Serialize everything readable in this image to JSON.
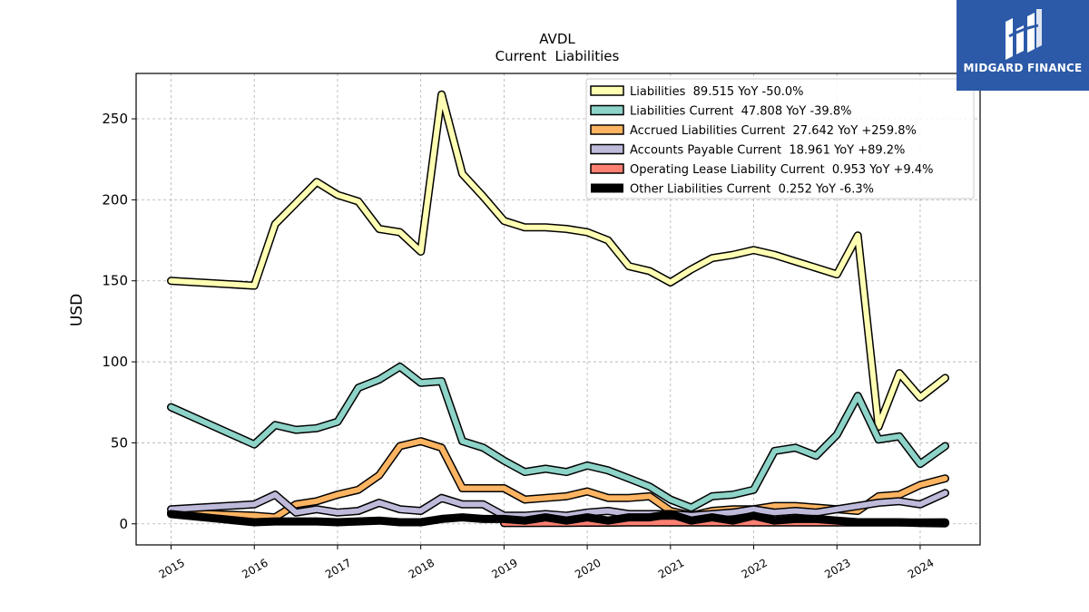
{
  "chart_data": {
    "type": "line",
    "title": "AVDL",
    "subtitle": "Current  Liabilities",
    "ylabel": "USD",
    "xlabel": "",
    "ylim": [
      -13,
      278
    ],
    "xlim": [
      2014.58,
      2024.72
    ],
    "yticks": [
      0,
      50,
      100,
      150,
      200,
      250
    ],
    "xticks": [
      "2015",
      "2016",
      "2017",
      "2018",
      "2019",
      "2020",
      "2021",
      "2022",
      "2023",
      "2024"
    ],
    "grid": true,
    "legend_position": "top-right",
    "series": [
      {
        "name": "Liabilities",
        "legend": "Liabilities  89.515 YoY -50.0%",
        "color": "#ffffb3",
        "width": 6,
        "x": [
          2015.0,
          2016.0,
          2016.25,
          2016.5,
          2016.75,
          2017.0,
          2017.25,
          2017.5,
          2017.75,
          2018.0,
          2018.25,
          2018.5,
          2018.75,
          2019.0,
          2019.25,
          2019.5,
          2019.75,
          2020.0,
          2020.25,
          2020.5,
          2020.75,
          2021.0,
          2021.25,
          2021.5,
          2021.75,
          2022.0,
          2022.25,
          2022.5,
          2022.75,
          2023.0,
          2023.25,
          2023.5,
          2023.75,
          2024.0,
          2024.3
        ],
        "y": [
          150,
          147,
          185,
          198,
          211,
          203,
          199,
          182,
          180,
          168,
          265,
          216,
          202,
          187,
          183,
          183,
          182,
          180,
          175,
          159,
          156,
          149,
          157,
          164,
          166,
          169,
          166,
          162,
          158,
          154,
          178,
          60,
          93,
          78,
          90
        ]
      },
      {
        "name": "Liabilities Current",
        "legend": "Liabilities Current  47.808 YoY -39.8%",
        "color": "#8dd3c7",
        "width": 6,
        "x": [
          2015.0,
          2016.0,
          2016.25,
          2016.5,
          2016.75,
          2017.0,
          2017.25,
          2017.5,
          2017.75,
          2018.0,
          2018.25,
          2018.5,
          2018.75,
          2019.0,
          2019.25,
          2019.5,
          2019.75,
          2020.0,
          2020.25,
          2020.5,
          2020.75,
          2021.0,
          2021.25,
          2021.5,
          2021.75,
          2022.0,
          2022.25,
          2022.5,
          2022.75,
          2023.0,
          2023.25,
          2023.5,
          2023.75,
          2024.0,
          2024.3
        ],
        "y": [
          72,
          49,
          61,
          58,
          59,
          63,
          84,
          89,
          97,
          87,
          88,
          51,
          47,
          39,
          32,
          34,
          32,
          36,
          33,
          28,
          23,
          15,
          10,
          17,
          18,
          21,
          45,
          47,
          42,
          55,
          79,
          52,
          54,
          37,
          48
        ]
      },
      {
        "name": "Accrued Liabilities Current",
        "legend": "Accrued Liabilities Current  27.642 YoY +259.8%",
        "color": "#fdb462",
        "width": 6,
        "x": [
          2015.0,
          2016.0,
          2016.25,
          2016.5,
          2016.75,
          2017.0,
          2017.25,
          2017.5,
          2017.75,
          2018.0,
          2018.25,
          2018.5,
          2018.75,
          2019.0,
          2019.25,
          2019.5,
          2019.75,
          2020.0,
          2020.25,
          2020.5,
          2020.75,
          2021.0,
          2021.25,
          2021.5,
          2021.75,
          2022.0,
          2022.25,
          2022.5,
          2022.75,
          2023.0,
          2023.25,
          2023.5,
          2023.75,
          2024.0,
          2024.3
        ],
        "y": [
          7,
          5,
          4,
          12,
          14,
          18,
          21,
          30,
          48,
          51,
          47,
          22,
          22,
          22,
          15,
          16,
          17,
          20,
          16,
          16,
          17,
          8,
          5,
          8,
          9,
          9,
          11,
          11,
          10,
          9,
          8,
          17,
          18,
          24,
          28
        ]
      },
      {
        "name": "Accounts Payable Current",
        "legend": "Accounts Payable Current  18.961 YoY +89.2%",
        "color": "#bebada",
        "width": 6,
        "x": [
          2015.0,
          2016.0,
          2016.25,
          2016.5,
          2016.75,
          2017.0,
          2017.25,
          2017.5,
          2017.75,
          2018.0,
          2018.25,
          2018.5,
          2018.75,
          2019.0,
          2019.25,
          2019.5,
          2019.75,
          2020.0,
          2020.25,
          2020.5,
          2020.75,
          2021.0,
          2021.25,
          2021.5,
          2021.75,
          2022.0,
          2022.25,
          2022.5,
          2022.75,
          2023.0,
          2023.25,
          2023.5,
          2023.75,
          2024.0,
          2024.3
        ],
        "y": [
          9,
          12,
          18,
          7,
          9,
          7,
          8,
          13,
          9,
          8,
          16,
          12,
          12,
          5,
          5,
          6,
          5,
          7,
          8,
          6,
          6,
          6,
          5,
          6,
          7,
          9,
          7,
          8,
          7,
          9,
          11,
          13,
          14,
          12,
          19
        ]
      },
      {
        "name": "Operating Lease Liability Current",
        "legend": "Operating Lease Liability Current  0.953 YoY +9.4%",
        "color": "#fb8072",
        "width": 6,
        "x": [
          2019.0,
          2019.25,
          2019.5,
          2019.75,
          2020.0,
          2020.25,
          2020.5,
          2020.75,
          2021.0,
          2021.25,
          2021.5,
          2021.75,
          2022.0,
          2022.25,
          2022.5,
          2022.75,
          2023.0,
          2023.25,
          2023.5,
          2023.75,
          2024.0,
          2024.3
        ],
        "y": [
          0.5,
          0.5,
          0.6,
          0.6,
          0.7,
          0.7,
          0.8,
          0.8,
          0.9,
          0.9,
          0.9,
          0.9,
          0.9,
          0.9,
          0.9,
          0.9,
          0.9,
          0.9,
          0.9,
          0.9,
          0.9,
          0.95
        ]
      },
      {
        "name": "Other Liabilities Current",
        "legend": "Other Liabilities Current  0.252 YoY -6.3%",
        "color": "#000000",
        "width": 9,
        "x": [
          2015.0,
          2016.0,
          2016.25,
          2016.5,
          2016.75,
          2017.0,
          2017.25,
          2017.5,
          2017.75,
          2018.0,
          2018.25,
          2018.5,
          2018.75,
          2019.0,
          2019.25,
          2019.5,
          2019.75,
          2020.0,
          2020.25,
          2020.5,
          2020.75,
          2021.0,
          2021.25,
          2021.5,
          2021.75,
          2022.0,
          2022.25,
          2022.5,
          2022.75,
          2023.0,
          2023.25,
          2023.5,
          2023.75,
          2024.0,
          2024.3
        ],
        "y": [
          6,
          1,
          1.5,
          1.5,
          1.5,
          1,
          1.5,
          2,
          1,
          1,
          3,
          4,
          3,
          3,
          2,
          4,
          2,
          4,
          2,
          4,
          4,
          6,
          2,
          4,
          2,
          5,
          2,
          3,
          3,
          2,
          1,
          1,
          1,
          0.5,
          0.3
        ]
      }
    ]
  },
  "logo": {
    "text": "MIDGARD FINANCE",
    "bg_color": "#2c5aa8"
  }
}
